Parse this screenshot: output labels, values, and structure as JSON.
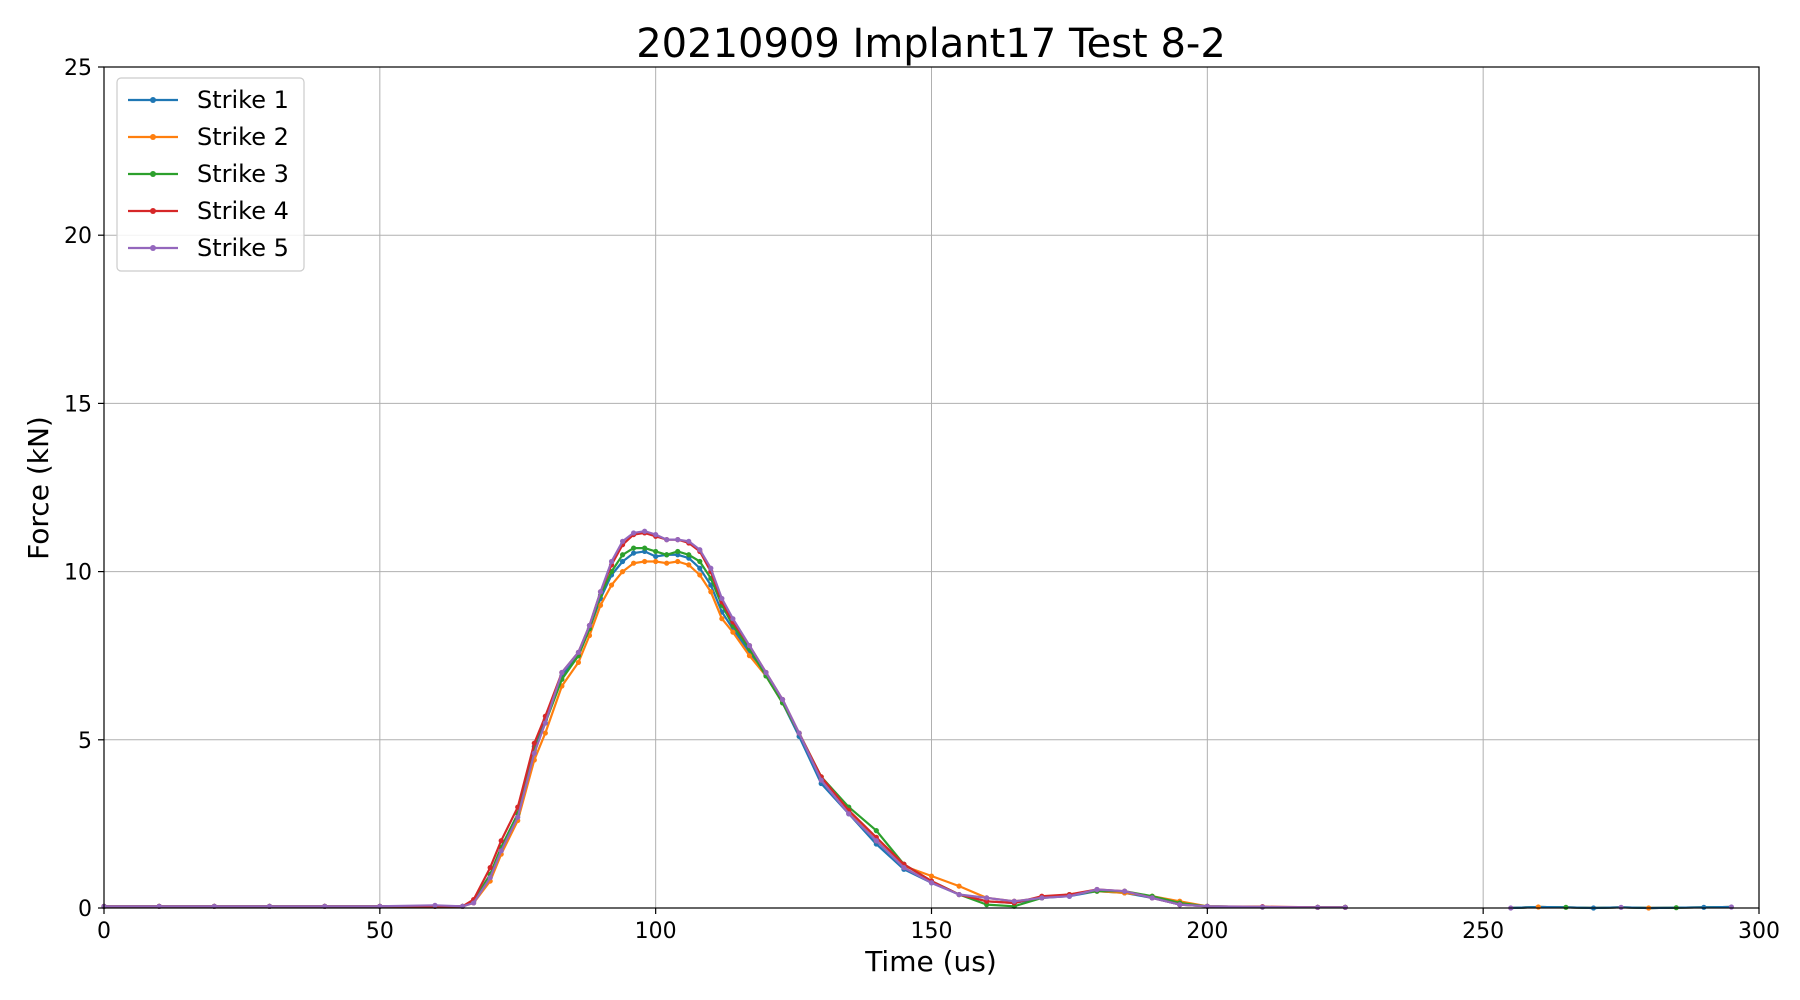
{
  "chart_data": {
    "type": "line",
    "title": "20210909 Implant17 Test 8-2",
    "xlabel": "Time (us)",
    "ylabel": "Force (kN)",
    "xlim": [
      0,
      300
    ],
    "ylim": [
      0,
      25
    ],
    "xticks": [
      0,
      50,
      100,
      150,
      200,
      250,
      300
    ],
    "yticks": [
      0,
      5,
      10,
      15,
      20,
      25
    ],
    "grid": true,
    "legend_position": "upper-left",
    "x": [
      0,
      10,
      20,
      30,
      40,
      50,
      60,
      65,
      67,
      70,
      72,
      75,
      78,
      80,
      83,
      86,
      88,
      90,
      92,
      94,
      96,
      98,
      100,
      102,
      104,
      106,
      108,
      110,
      112,
      114,
      117,
      120,
      123,
      126,
      130,
      135,
      140,
      145,
      150,
      155,
      160,
      165,
      170,
      175,
      180,
      185,
      190,
      195,
      200,
      210,
      220,
      225
    ],
    "series": [
      {
        "name": "Strike 1",
        "color": "#1f77b4",
        "values": [
          0.05,
          0.05,
          0.05,
          0.05,
          0.05,
          0.05,
          0.05,
          0.05,
          0.2,
          1.0,
          1.8,
          2.8,
          4.8,
          5.6,
          6.9,
          7.5,
          8.3,
          9.2,
          9.9,
          10.3,
          10.55,
          10.6,
          10.45,
          10.5,
          10.5,
          10.4,
          10.1,
          9.6,
          8.8,
          8.3,
          7.6,
          6.9,
          6.1,
          5.1,
          3.7,
          2.8,
          1.9,
          1.15,
          0.75,
          0.4,
          0.2,
          0.15,
          0.3,
          0.35,
          0.5,
          0.45,
          0.3,
          0.1,
          0.05,
          0.03,
          0.02,
          0.02
        ]
      },
      {
        "name": "Strike 2",
        "color": "#ff7f0e",
        "values": [
          0.05,
          0.05,
          0.05,
          0.05,
          0.05,
          0.05,
          0.05,
          0.05,
          0.15,
          0.8,
          1.6,
          2.6,
          4.4,
          5.2,
          6.6,
          7.3,
          8.1,
          9.0,
          9.6,
          10.0,
          10.25,
          10.3,
          10.3,
          10.25,
          10.3,
          10.2,
          9.9,
          9.4,
          8.6,
          8.2,
          7.5,
          6.9,
          6.1,
          5.2,
          3.9,
          2.9,
          2.0,
          1.25,
          0.95,
          0.65,
          0.3,
          0.2,
          0.3,
          0.4,
          0.5,
          0.45,
          0.35,
          0.2,
          0.05,
          0.03,
          0.02,
          0.02
        ]
      },
      {
        "name": "Strike 3",
        "color": "#2ca02c",
        "values": [
          0.05,
          0.05,
          0.05,
          0.05,
          0.05,
          0.05,
          0.05,
          0.05,
          0.2,
          1.0,
          1.8,
          2.8,
          4.7,
          5.5,
          6.8,
          7.5,
          8.3,
          9.3,
          10.0,
          10.5,
          10.7,
          10.7,
          10.6,
          10.5,
          10.6,
          10.5,
          10.3,
          9.8,
          9.0,
          8.4,
          7.7,
          6.9,
          6.1,
          5.2,
          3.9,
          3.0,
          2.3,
          1.3,
          0.8,
          0.4,
          0.1,
          0.05,
          0.3,
          0.4,
          0.5,
          0.5,
          0.35,
          0.15,
          0.05,
          0.03,
          0.02,
          0.02
        ]
      },
      {
        "name": "Strike 4",
        "color": "#d62728",
        "values": [
          0.05,
          0.05,
          0.05,
          0.05,
          0.05,
          0.05,
          0.05,
          0.05,
          0.25,
          1.2,
          2.0,
          3.0,
          4.9,
          5.7,
          7.0,
          7.6,
          8.4,
          9.4,
          10.2,
          10.8,
          11.1,
          11.15,
          11.05,
          10.95,
          10.95,
          10.85,
          10.6,
          10.0,
          9.1,
          8.5,
          7.8,
          7.0,
          6.2,
          5.2,
          3.9,
          2.9,
          2.1,
          1.3,
          0.8,
          0.4,
          0.2,
          0.15,
          0.35,
          0.4,
          0.55,
          0.5,
          0.3,
          0.1,
          0.05,
          0.04,
          0.02,
          0.02
        ]
      },
      {
        "name": "Strike 5",
        "color": "#9467bd",
        "values": [
          0.05,
          0.05,
          0.05,
          0.05,
          0.05,
          0.05,
          0.08,
          0.05,
          0.15,
          0.9,
          1.7,
          2.7,
          4.6,
          5.5,
          7.0,
          7.6,
          8.4,
          9.4,
          10.3,
          10.9,
          11.15,
          11.2,
          11.1,
          10.95,
          10.95,
          10.9,
          10.65,
          10.1,
          9.2,
          8.6,
          7.8,
          7.0,
          6.2,
          5.2,
          3.8,
          2.8,
          2.0,
          1.2,
          0.75,
          0.4,
          0.3,
          0.2,
          0.3,
          0.35,
          0.55,
          0.5,
          0.3,
          0.1,
          0.05,
          0.03,
          0.02,
          0.02
        ]
      }
    ],
    "tail_series": {
      "x": [
        255,
        260,
        265,
        270,
        275,
        280,
        285,
        290,
        295
      ],
      "values": [
        0.0,
        0.03,
        0.02,
        0.0,
        0.02,
        0.0,
        0.01,
        0.02,
        0.03
      ]
    }
  }
}
